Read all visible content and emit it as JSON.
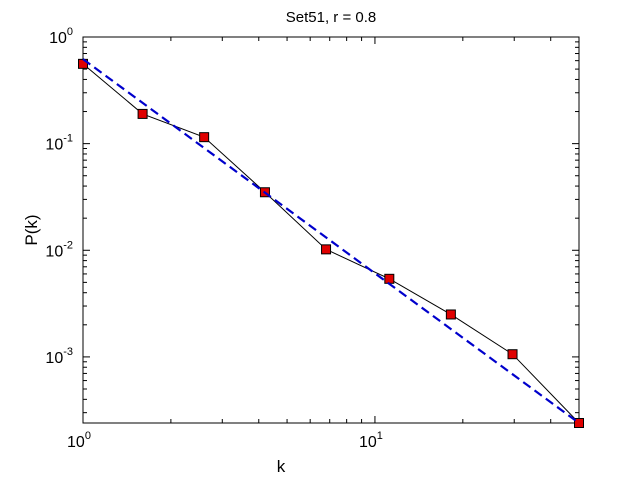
{
  "chart_data": {
    "type": "line",
    "title": "Set51, r = 0.8",
    "xlabel": "k",
    "ylabel": "P(k)",
    "xscale": "log",
    "yscale": "log",
    "xlim": [
      1,
      50
    ],
    "ylim": [
      0.00024,
      1
    ],
    "grid": false,
    "x_ticks": [
      {
        "base": "10",
        "exp": "0"
      },
      {
        "base": "10",
        "exp": "1"
      }
    ],
    "y_ticks": [
      {
        "base": "10",
        "exp": "-3"
      },
      {
        "base": "10",
        "exp": "-2"
      },
      {
        "base": "10",
        "exp": "-1"
      },
      {
        "base": "10",
        "exp": "0"
      }
    ],
    "series": [
      {
        "style": "solid-black-line-red-square-markers",
        "color": "#000000",
        "marker_color": "#e00000",
        "x": [
          1.0,
          1.6,
          2.6,
          4.2,
          6.8,
          11.2,
          18.2,
          29.6,
          50.0
        ],
        "y": [
          0.56,
          0.19,
          0.115,
          0.035,
          0.0102,
          0.0054,
          0.0025,
          0.00106,
          0.00024
        ]
      },
      {
        "style": "dashed-blue-fit-line",
        "color": "#0000cc",
        "x": [
          1.0,
          50.0
        ],
        "y": [
          0.62,
          0.00024
        ]
      }
    ]
  }
}
